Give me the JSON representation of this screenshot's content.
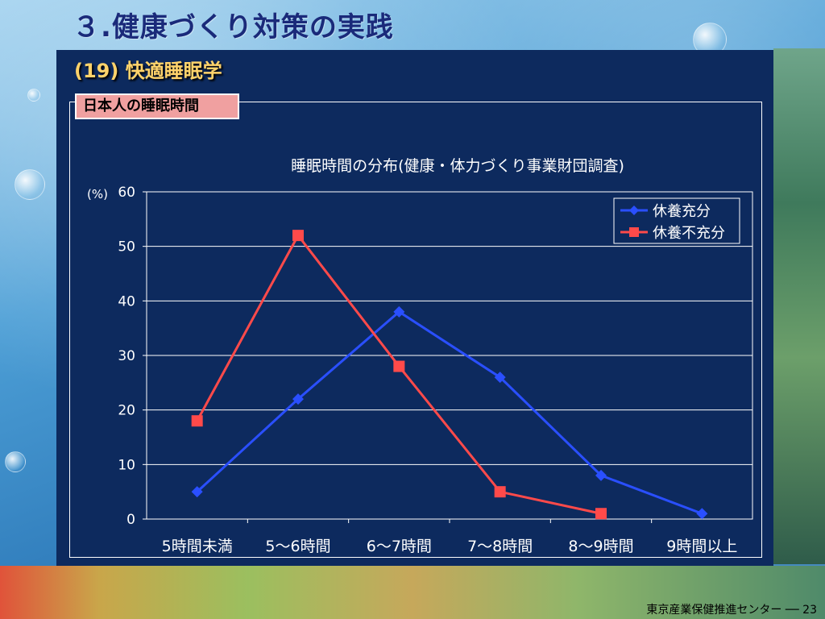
{
  "slide": {
    "title": "３.健康づくり対策の実践",
    "subtitle": "(19) 快適睡眠学",
    "section_label": "日本人の睡眠時間",
    "footer": "東京産業保健推進センター ── 23"
  },
  "chart_data": {
    "type": "line",
    "title": "睡眠時間の分布(健康・体力づくり事業財団調査)",
    "ylabel": "(%)",
    "xlabel": "",
    "categories": [
      "5時間未満",
      "5～6時間",
      "6～7時間",
      "7～8時間",
      "8～9時間",
      "9時間以上"
    ],
    "ylim": [
      0,
      60
    ],
    "yticks": [
      0,
      10,
      20,
      30,
      40,
      50,
      60
    ],
    "grid": true,
    "legend_position": "top-right",
    "series": [
      {
        "name": "休養充分",
        "marker": "diamond",
        "color": "#2a4fff",
        "values": [
          5,
          22,
          38,
          26,
          8,
          1
        ]
      },
      {
        "name": "休養不充分",
        "marker": "square",
        "color": "#ff4a4a",
        "values": [
          18,
          52,
          28,
          5,
          1,
          null
        ]
      }
    ]
  }
}
